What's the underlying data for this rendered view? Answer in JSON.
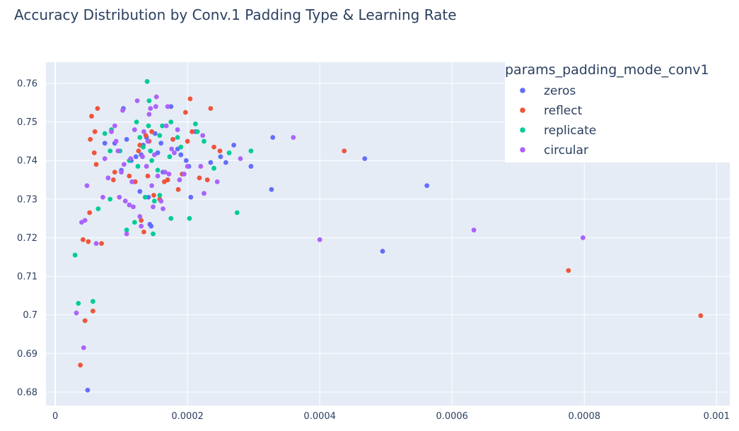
{
  "chart_data": {
    "type": "scatter",
    "title": "Accuracy Distribution by Conv.1 Padding Type & Learning Rate",
    "xlabel": "",
    "ylabel": "",
    "xlim": [
      -1.4e-05,
      0.00102
    ],
    "ylim": [
      0.6765,
      0.7655
    ],
    "x_ticks": [
      0,
      0.0002,
      0.0004,
      0.0006,
      0.0008,
      0.001
    ],
    "x_tick_labels": [
      "0",
      "0.0002",
      "0.0004",
      "0.0006",
      "0.0008",
      "0.001"
    ],
    "y_ticks": [
      0.68,
      0.69,
      0.7,
      0.71,
      0.72,
      0.73,
      0.74,
      0.75,
      0.76
    ],
    "y_tick_labels": [
      "0.68",
      "0.69",
      "0.7",
      "0.71",
      "0.72",
      "0.73",
      "0.74",
      "0.75",
      "0.76"
    ],
    "grid": true,
    "legend_title": "params_padding_mode_conv1",
    "legend_position": "top-right",
    "series": [
      {
        "name": "zeros",
        "color": "#636efa",
        "points": [
          [
            4.9e-05,
            0.6805
          ],
          [
            7.5e-05,
            0.7445
          ],
          [
            9e-05,
            0.7445
          ],
          [
            0.0001,
            0.7375
          ],
          [
            0.000103,
            0.7535
          ],
          [
            0.000108,
            0.7455
          ],
          [
            0.000115,
            0.74
          ],
          [
            0.00012,
            0.7345
          ],
          [
            0.000122,
            0.741
          ],
          [
            0.000128,
            0.732
          ],
          [
            0.00013,
            0.7415
          ],
          [
            0.000133,
            0.744
          ],
          [
            0.000138,
            0.746
          ],
          [
            0.000141,
            0.7305
          ],
          [
            0.000143,
            0.7235
          ],
          [
            0.000145,
            0.723
          ],
          [
            0.000151,
            0.747
          ],
          [
            0.000155,
            0.742
          ],
          [
            0.00016,
            0.7445
          ],
          [
            0.000163,
            0.737
          ],
          [
            0.00017,
            0.735
          ],
          [
            0.000175,
            0.754
          ],
          [
            0.000178,
            0.7455
          ],
          [
            0.000185,
            0.743
          ],
          [
            0.00019,
            0.7415
          ],
          [
            0.000198,
            0.74
          ],
          [
            0.000202,
            0.7385
          ],
          [
            0.000205,
            0.7305
          ],
          [
            0.000212,
            0.7475
          ],
          [
            0.000235,
            0.7395
          ],
          [
            0.00025,
            0.741
          ],
          [
            0.000258,
            0.7395
          ],
          [
            0.00027,
            0.744
          ],
          [
            0.000296,
            0.7385
          ],
          [
            0.000327,
            0.7325
          ],
          [
            0.000329,
            0.746
          ],
          [
            0.000468,
            0.7405
          ],
          [
            0.000495,
            0.7165
          ],
          [
            0.000562,
            0.7335
          ]
        ]
      },
      {
        "name": "reflect",
        "color": "#ef553b",
        "points": [
          [
            3.8e-05,
            0.687
          ],
          [
            4.2e-05,
            0.7195
          ],
          [
            4.5e-05,
            0.6985
          ],
          [
            5e-05,
            0.719
          ],
          [
            5.2e-05,
            0.7265
          ],
          [
            5.3e-05,
            0.7455
          ],
          [
            5.5e-05,
            0.7515
          ],
          [
            5.7e-05,
            0.701
          ],
          [
            5.9e-05,
            0.742
          ],
          [
            6e-05,
            0.7475
          ],
          [
            6.2e-05,
            0.739
          ],
          [
            6.4e-05,
            0.7535
          ],
          [
            7e-05,
            0.7185
          ],
          [
            8.8e-05,
            0.735
          ],
          [
            9e-05,
            0.737
          ],
          [
            0.000112,
            0.736
          ],
          [
            0.000121,
            0.7345
          ],
          [
            0.000126,
            0.7425
          ],
          [
            0.000128,
            0.744
          ],
          [
            0.00013,
            0.7245
          ],
          [
            0.000134,
            0.7215
          ],
          [
            0.000137,
            0.7465
          ],
          [
            0.00014,
            0.736
          ],
          [
            0.000142,
            0.745
          ],
          [
            0.000146,
            0.7475
          ],
          [
            0.000149,
            0.731
          ],
          [
            0.000158,
            0.73
          ],
          [
            0.000165,
            0.7345
          ],
          [
            0.00017,
            0.735
          ],
          [
            0.000178,
            0.7455
          ],
          [
            0.000186,
            0.7325
          ],
          [
            0.000192,
            0.7365
          ],
          [
            0.000197,
            0.7525
          ],
          [
            0.0002,
            0.745
          ],
          [
            0.000204,
            0.756
          ],
          [
            0.000207,
            0.7475
          ],
          [
            0.000218,
            0.7355
          ],
          [
            0.00023,
            0.735
          ],
          [
            0.000235,
            0.7535
          ],
          [
            0.00024,
            0.7435
          ],
          [
            0.000249,
            0.7425
          ],
          [
            0.000437,
            0.7425
          ],
          [
            0.000776,
            0.7115
          ],
          [
            0.000976,
            0.6998
          ]
        ]
      },
      {
        "name": "replicate",
        "color": "#00cc96",
        "points": [
          [
            3e-05,
            0.7155
          ],
          [
            3.5e-05,
            0.703
          ],
          [
            5.7e-05,
            0.7035
          ],
          [
            6.5e-05,
            0.7275
          ],
          [
            7.5e-05,
            0.747
          ],
          [
            8.3e-05,
            0.73
          ],
          [
            8.3e-05,
            0.7425
          ],
          [
            8.5e-05,
            0.748
          ],
          [
            9.8e-05,
            0.7425
          ],
          [
            0.000108,
            0.722
          ],
          [
            0.000112,
            0.74
          ],
          [
            0.00012,
            0.724
          ],
          [
            0.000123,
            0.75
          ],
          [
            0.000125,
            0.7385
          ],
          [
            0.000128,
            0.746
          ],
          [
            0.000133,
            0.7435
          ],
          [
            0.000136,
            0.7305
          ],
          [
            0.000139,
            0.7605
          ],
          [
            0.000141,
            0.749
          ],
          [
            0.000142,
            0.7555
          ],
          [
            0.000144,
            0.7425
          ],
          [
            0.000146,
            0.74
          ],
          [
            0.000148,
            0.721
          ],
          [
            0.00015,
            0.7295
          ],
          [
            0.000155,
            0.7375
          ],
          [
            0.000158,
            0.731
          ],
          [
            0.000158,
            0.7465
          ],
          [
            0.000162,
            0.749
          ],
          [
            0.000173,
            0.741
          ],
          [
            0.000175,
            0.75
          ],
          [
            0.000175,
            0.725
          ],
          [
            0.000185,
            0.746
          ],
          [
            0.00019,
            0.7435
          ],
          [
            0.000203,
            0.725
          ],
          [
            0.000212,
            0.7495
          ],
          [
            0.000215,
            0.7475
          ],
          [
            0.000225,
            0.745
          ],
          [
            0.00024,
            0.738
          ],
          [
            0.000263,
            0.742
          ],
          [
            0.000275,
            0.7265
          ],
          [
            0.000296,
            0.7425
          ]
        ]
      },
      {
        "name": "circular",
        "color": "#ab63fa",
        "points": [
          [
            3.2e-05,
            0.7005
          ],
          [
            4e-05,
            0.724
          ],
          [
            4.3e-05,
            0.6915
          ],
          [
            4.5e-05,
            0.7245
          ],
          [
            4.8e-05,
            0.7335
          ],
          [
            6.2e-05,
            0.7185
          ],
          [
            7.2e-05,
            0.7305
          ],
          [
            7.5e-05,
            0.7405
          ],
          [
            8e-05,
            0.7355
          ],
          [
            8.5e-05,
            0.7475
          ],
          [
            9e-05,
            0.749
          ],
          [
            9.2e-05,
            0.745
          ],
          [
            9.5e-05,
            0.7425
          ],
          [
            9.7e-05,
            0.7305
          ],
          [
            0.0001,
            0.737
          ],
          [
            0.000102,
            0.753
          ],
          [
            0.000104,
            0.739
          ],
          [
            0.000106,
            0.7295
          ],
          [
            0.000108,
            0.721
          ],
          [
            0.000112,
            0.7285
          ],
          [
            0.000114,
            0.7405
          ],
          [
            0.000116,
            0.7345
          ],
          [
            0.000118,
            0.728
          ],
          [
            0.00012,
            0.748
          ],
          [
            0.000124,
            0.7555
          ],
          [
            0.000128,
            0.7255
          ],
          [
            0.00013,
            0.723
          ],
          [
            0.000132,
            0.741
          ],
          [
            0.000134,
            0.7475
          ],
          [
            0.000138,
            0.7385
          ],
          [
            0.00014,
            0.745
          ],
          [
            0.000142,
            0.752
          ],
          [
            0.000144,
            0.7535
          ],
          [
            0.000146,
            0.7335
          ],
          [
            0.000148,
            0.728
          ],
          [
            0.00015,
            0.7415
          ],
          [
            0.000152,
            0.754
          ],
          [
            0.000153,
            0.7565
          ],
          [
            0.000155,
            0.736
          ],
          [
            0.00016,
            0.7295
          ],
          [
            0.000163,
            0.7275
          ],
          [
            0.000166,
            0.737
          ],
          [
            0.000168,
            0.749
          ],
          [
            0.00017,
            0.754
          ],
          [
            0.000172,
            0.7365
          ],
          [
            0.000176,
            0.743
          ],
          [
            0.00018,
            0.742
          ],
          [
            0.000185,
            0.748
          ],
          [
            0.000188,
            0.735
          ],
          [
            0.000195,
            0.7365
          ],
          [
            0.0002,
            0.7385
          ],
          [
            0.00022,
            0.7385
          ],
          [
            0.000223,
            0.7465
          ],
          [
            0.000225,
            0.7315
          ],
          [
            0.000245,
            0.7345
          ],
          [
            0.00028,
            0.7405
          ],
          [
            0.00036,
            0.746
          ],
          [
            0.0004,
            0.7195
          ],
          [
            0.000633,
            0.722
          ],
          [
            0.000798,
            0.72
          ]
        ]
      }
    ]
  }
}
